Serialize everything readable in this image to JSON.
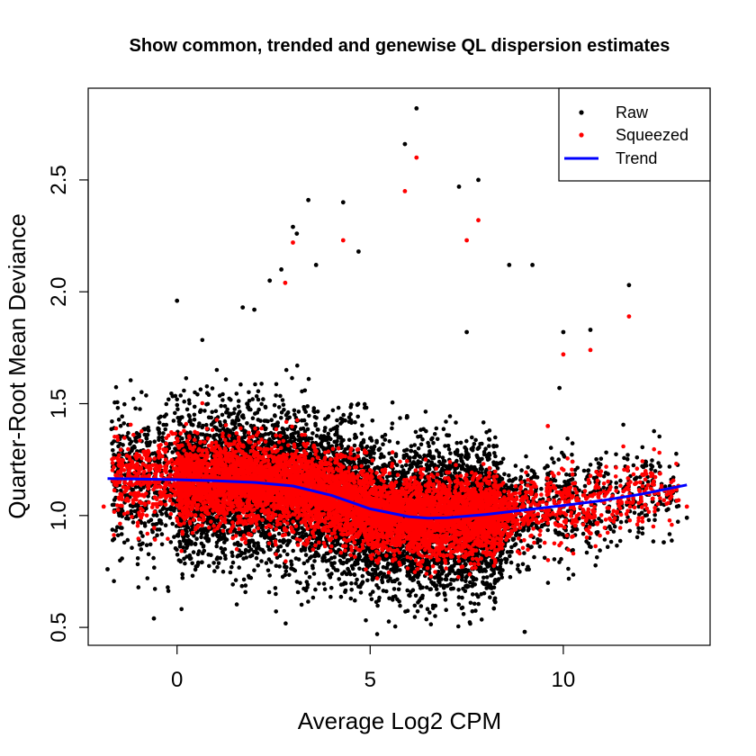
{
  "chart_data": {
    "type": "scatter",
    "title": "Show common, trended and genewise QL dispersion estimates",
    "xlabel": "Average Log2 CPM",
    "ylabel": "Quarter-Root Mean Deviance",
    "xlim": [
      -2.3,
      13.8
    ],
    "ylim": [
      0.42,
      2.91
    ],
    "x_ticks": [
      0,
      5,
      10
    ],
    "y_ticks": [
      0.5,
      1.0,
      1.5,
      2.0,
      2.5
    ],
    "x_tick_labels": [
      "0",
      "5",
      "10"
    ],
    "y_tick_labels": [
      "0.5",
      "1.0",
      "1.5",
      "2.0",
      "2.5"
    ],
    "grid": false,
    "legend_position": "top-right",
    "colors": {
      "raw": "#000000",
      "squeezed": "#ff0000",
      "trend": "#0000ff"
    },
    "series": [
      {
        "name": "Raw",
        "mark": "point",
        "color": "#000000",
        "x": [
          6.2,
          5.9,
          7.3,
          7.8,
          3.4,
          4.3,
          3.0,
          3.1,
          3.6,
          2.7,
          4.7,
          2.4,
          0.0,
          -1.8,
          -0.6,
          9.0,
          11.7,
          10.7,
          12.6,
          13.2,
          8.6,
          9.2,
          2.0,
          1.7,
          10.0,
          9.9,
          7.5
        ],
        "y": [
          2.82,
          2.66,
          2.47,
          2.5,
          2.41,
          2.4,
          2.29,
          2.26,
          2.12,
          2.1,
          2.18,
          2.05,
          1.96,
          0.76,
          0.54,
          0.48,
          2.03,
          1.83,
          0.88,
          0.99,
          2.12,
          2.12,
          1.92,
          1.93,
          1.82,
          1.57,
          1.82
        ]
      },
      {
        "name": "Squeezed",
        "mark": "point",
        "color": "#ff0000",
        "x": [
          6.2,
          5.9,
          7.8,
          7.5,
          3.0,
          4.3,
          2.8,
          11.7,
          10.7,
          10.0,
          9.6,
          13.2,
          -1.9
        ],
        "y": [
          2.6,
          2.45,
          2.32,
          2.23,
          2.22,
          2.23,
          2.04,
          1.89,
          1.74,
          1.72,
          1.4,
          1.04,
          1.04
        ]
      },
      {
        "name": "Trend",
        "mark": "line",
        "color": "#0000ff",
        "x": [
          -1.8,
          -1.0,
          0.0,
          1.0,
          2.0,
          3.0,
          4.0,
          5.0,
          6.0,
          6.5,
          7.0,
          8.0,
          9.0,
          10.0,
          11.0,
          12.0,
          13.2
        ],
        "y": [
          1.165,
          1.163,
          1.16,
          1.155,
          1.148,
          1.132,
          1.09,
          1.03,
          0.995,
          0.988,
          0.99,
          1.005,
          1.025,
          1.045,
          1.067,
          1.095,
          1.137
        ]
      }
    ],
    "legend": [
      {
        "label": "Raw",
        "symbol": "point",
        "color": "#000000"
      },
      {
        "label": "Squeezed",
        "symbol": "point",
        "color": "#ff0000"
      },
      {
        "label": "Trend",
        "symbol": "line",
        "color": "#0000ff"
      }
    ]
  }
}
